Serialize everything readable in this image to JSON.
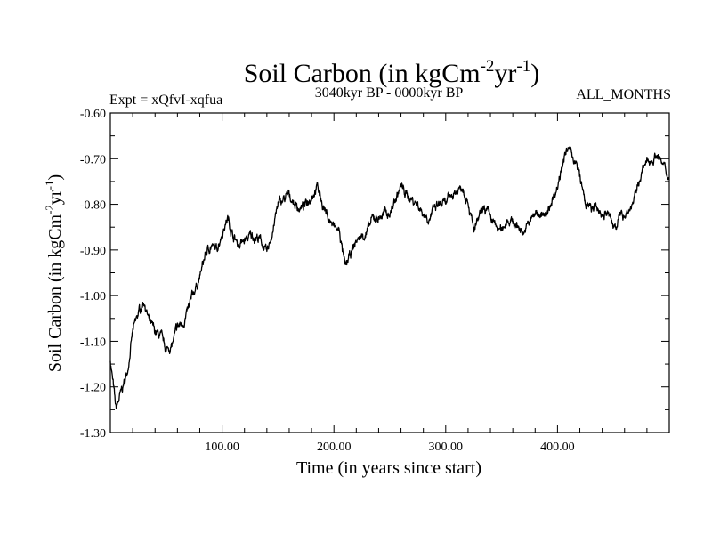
{
  "chart_data": {
    "type": "line",
    "title": "Soil Carbon (in kgCm",
    "title_sup1": "-2",
    "title_mid": "yr",
    "title_sup2": "-1",
    "title_end": ")",
    "subtitle_left": "Expt = xQfvI-xqfua",
    "subtitle_center": "3040kyr BP - 0000kyr BP",
    "subtitle_right": "ALL_MONTHS",
    "xlabel": "Time (in years since start)",
    "ylabel": "Soil Carbon (in kgCm",
    "ylabel_sup1": "-2",
    "ylabel_mid": "yr",
    "ylabel_sup2": "-1",
    "ylabel_end": ")",
    "xlim": [
      0,
      500
    ],
    "ylim": [
      -1.3,
      -0.6
    ],
    "xticks": [
      100,
      200,
      300,
      400
    ],
    "xtick_labels": [
      "100.00",
      "200.00",
      "300.00",
      "400.00"
    ],
    "yticks": [
      -0.6,
      -0.7,
      -0.8,
      -0.9,
      -1.0,
      -1.1,
      -1.2,
      -1.3
    ],
    "ytick_labels": [
      "-0.60",
      "-0.70",
      "-0.80",
      "-0.90",
      "-1.00",
      "-1.10",
      "-1.20",
      "-1.30"
    ],
    "series": [
      {
        "name": "soil_carbon",
        "color": "#000000",
        "x": [
          0,
          5,
          10,
          15,
          20,
          25,
          30,
          35,
          40,
          45,
          50,
          55,
          60,
          65,
          70,
          75,
          80,
          85,
          90,
          95,
          100,
          105,
          110,
          115,
          120,
          125,
          130,
          135,
          140,
          145,
          150,
          155,
          160,
          165,
          170,
          175,
          180,
          185,
          190,
          195,
          200,
          205,
          210,
          215,
          220,
          225,
          230,
          235,
          240,
          245,
          250,
          255,
          260,
          265,
          270,
          275,
          280,
          285,
          290,
          295,
          300,
          305,
          310,
          315,
          320,
          325,
          330,
          335,
          340,
          345,
          350,
          355,
          360,
          365,
          370,
          375,
          380,
          385,
          390,
          395,
          400,
          405,
          410,
          415,
          420,
          425,
          430,
          435,
          440,
          445,
          450,
          455,
          460,
          465,
          470,
          475,
          480,
          485,
          490,
          495,
          500
        ],
        "values": [
          -1.14,
          -1.25,
          -1.21,
          -1.17,
          -1.08,
          -1.04,
          -1.01,
          -1.06,
          -1.08,
          -1.09,
          -1.12,
          -1.11,
          -1.07,
          -1.06,
          -1.03,
          -0.99,
          -0.96,
          -0.91,
          -0.89,
          -0.9,
          -0.86,
          -0.83,
          -0.87,
          -0.89,
          -0.88,
          -0.87,
          -0.87,
          -0.88,
          -0.91,
          -0.86,
          -0.8,
          -0.79,
          -0.78,
          -0.8,
          -0.81,
          -0.8,
          -0.78,
          -0.76,
          -0.8,
          -0.83,
          -0.85,
          -0.86,
          -0.94,
          -0.91,
          -0.88,
          -0.87,
          -0.86,
          -0.83,
          -0.83,
          -0.82,
          -0.82,
          -0.79,
          -0.76,
          -0.78,
          -0.79,
          -0.8,
          -0.82,
          -0.83,
          -0.81,
          -0.8,
          -0.8,
          -0.78,
          -0.77,
          -0.76,
          -0.79,
          -0.86,
          -0.83,
          -0.81,
          -0.83,
          -0.85,
          -0.86,
          -0.83,
          -0.84,
          -0.85,
          -0.86,
          -0.84,
          -0.82,
          -0.82,
          -0.83,
          -0.79,
          -0.76,
          -0.7,
          -0.68,
          -0.7,
          -0.74,
          -0.8,
          -0.81,
          -0.81,
          -0.82,
          -0.82,
          -0.85,
          -0.83,
          -0.82,
          -0.81,
          -0.78,
          -0.73,
          -0.71,
          -0.7,
          -0.69,
          -0.72,
          -0.74
        ]
      }
    ]
  }
}
